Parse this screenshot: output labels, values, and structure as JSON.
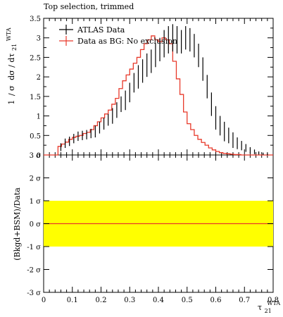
{
  "chart_data": [
    {
      "type": "line",
      "title": "Top selection, trimmed",
      "ylabel": "1/σ dσ/dτ₂₁^WTA",
      "ylabel_parts": {
        "frac_num": "1",
        "frac_den": "σ",
        "d_num": "dσ",
        "d_den": "dτ",
        "sub": "21",
        "sup": "WTA"
      },
      "xlim": [
        0,
        0.8
      ],
      "ylim": [
        0,
        3.5
      ],
      "yticks": [
        "0",
        "0.5",
        "1",
        "1.5",
        "2",
        "2.5",
        "3",
        "3.5"
      ],
      "ytick_values": [
        0,
        0.5,
        1,
        1.5,
        2,
        2.5,
        3,
        3.5
      ],
      "legend_position": "top-left",
      "bin_edges": [
        0,
        0.05,
        0.0625,
        0.075,
        0.0875,
        0.1,
        0.1125,
        0.125,
        0.1375,
        0.15,
        0.1625,
        0.175,
        0.1875,
        0.2,
        0.2125,
        0.225,
        0.2375,
        0.25,
        0.2625,
        0.275,
        0.2875,
        0.3,
        0.3125,
        0.325,
        0.3375,
        0.35,
        0.3625,
        0.375,
        0.3875,
        0.4,
        0.4125,
        0.425,
        0.4375,
        0.45,
        0.4625,
        0.475,
        0.4875,
        0.5,
        0.5125,
        0.525,
        0.5375,
        0.55,
        0.5625,
        0.575,
        0.5875,
        0.6,
        0.6125,
        0.625,
        0.6375,
        0.65,
        0.6625,
        0.675,
        0.6875,
        0.7,
        0.7125,
        0.725,
        0.7375,
        0.75,
        0.7625,
        0.775,
        0.7875,
        0.8
      ],
      "series": [
        {
          "name": "ATLAS Data",
          "color": "#000000",
          "style": "errorbar",
          "x": [
            0.06,
            0.075,
            0.09,
            0.105,
            0.12,
            0.135,
            0.15,
            0.165,
            0.18,
            0.195,
            0.21,
            0.225,
            0.24,
            0.255,
            0.27,
            0.285,
            0.3,
            0.315,
            0.33,
            0.345,
            0.36,
            0.375,
            0.39,
            0.405,
            0.42,
            0.435,
            0.45,
            0.465,
            0.48,
            0.495,
            0.51,
            0.525,
            0.54,
            0.555,
            0.57,
            0.585,
            0.6,
            0.615,
            0.63,
            0.645,
            0.66,
            0.675,
            0.69,
            0.705,
            0.72,
            0.735,
            0.75,
            0.765,
            0.78
          ],
          "y": [
            0.2,
            0.3,
            0.35,
            0.42,
            0.48,
            0.5,
            0.52,
            0.55,
            0.6,
            0.7,
            0.8,
            0.9,
            1.0,
            1.15,
            1.3,
            1.4,
            1.6,
            1.85,
            2.0,
            2.15,
            2.3,
            2.4,
            2.55,
            2.7,
            2.85,
            2.95,
            3.0,
            2.95,
            2.9,
            3.0,
            2.95,
            2.8,
            2.55,
            2.2,
            1.75,
            1.3,
            0.95,
            0.75,
            0.6,
            0.5,
            0.38,
            0.3,
            0.24,
            0.18,
            0.12,
            0.08,
            0.05,
            0.03,
            0.02
          ],
          "yerr": [
            0.1,
            0.12,
            0.12,
            0.12,
            0.12,
            0.12,
            0.12,
            0.12,
            0.15,
            0.15,
            0.15,
            0.15,
            0.2,
            0.2,
            0.2,
            0.25,
            0.25,
            0.25,
            0.3,
            0.3,
            0.3,
            0.3,
            0.3,
            0.3,
            0.35,
            0.35,
            0.35,
            0.35,
            0.3,
            0.3,
            0.3,
            0.3,
            0.3,
            0.3,
            0.3,
            0.3,
            0.3,
            0.25,
            0.25,
            0.2,
            0.2,
            0.15,
            0.12,
            0.1,
            0.08,
            0.06,
            0.04,
            0.03,
            0.02
          ]
        },
        {
          "name": "Data as BG: No exclusion",
          "color": "#e8392a",
          "style": "step",
          "y": [
            0.0,
            0.22,
            0.28,
            0.33,
            0.4,
            0.45,
            0.48,
            0.5,
            0.55,
            0.58,
            0.65,
            0.75,
            0.85,
            0.95,
            1.05,
            1.15,
            1.3,
            1.45,
            1.7,
            1.9,
            2.05,
            2.2,
            2.35,
            2.5,
            2.7,
            2.85,
            2.95,
            3.05,
            2.95,
            2.9,
            3.0,
            2.95,
            2.85,
            2.4,
            1.95,
            1.55,
            1.1,
            0.8,
            0.65,
            0.5,
            0.4,
            0.32,
            0.25,
            0.18,
            0.13,
            0.09,
            0.06,
            0.04,
            0.03,
            0.02,
            0.01,
            0.01,
            0.0,
            0.0,
            0.0,
            0.0,
            0.0,
            0.0,
            0.0,
            0.0,
            0.0
          ]
        }
      ]
    },
    {
      "type": "area",
      "ylabel": "(Bkgd+BSM)/Data",
      "xlabel": "τ₂₁^WTA",
      "xlabel_parts": {
        "base": "τ",
        "sub": "21",
        "sup": "WTA"
      },
      "xlim": [
        0,
        0.8
      ],
      "ylim": [
        -3,
        3
      ],
      "xticks": [
        "0",
        "0.1",
        "0.2",
        "0.3",
        "0.4",
        "0.5",
        "0.6",
        "0.7",
        "0.8"
      ],
      "xtick_values": [
        0,
        0.1,
        0.2,
        0.3,
        0.4,
        0.5,
        0.6,
        0.7,
        0.8
      ],
      "yticks": [
        "-3 σ",
        "-2 σ",
        "-1 σ",
        "0 σ",
        "1 σ",
        "2 σ",
        "3 σ"
      ],
      "ytick_values": [
        -3,
        -2,
        -1,
        0,
        1,
        2,
        3
      ],
      "band": {
        "from": -1,
        "to": 1,
        "color": "#ffff00"
      },
      "line": {
        "y": 0,
        "color": "#e8392a"
      }
    }
  ]
}
